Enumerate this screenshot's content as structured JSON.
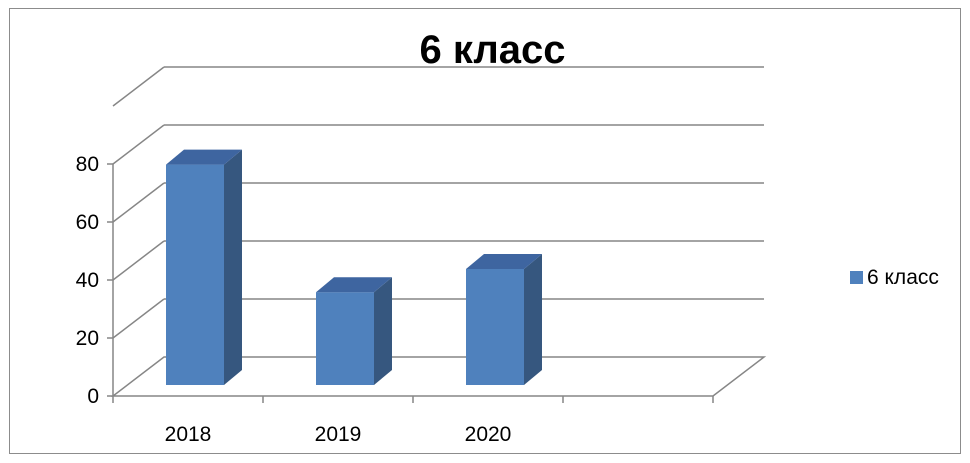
{
  "chart_data": {
    "type": "bar",
    "title": "6 класс",
    "categories": [
      "2018",
      "2019",
      "2020"
    ],
    "series": [
      {
        "name": "6 класс",
        "values": [
          76,
          32,
          40
        ],
        "color": "#4f81bd"
      }
    ],
    "ylim": [
      0,
      80
    ],
    "y_ticks": [
      "0",
      "20",
      "40",
      "60",
      "80"
    ],
    "grid": true,
    "legend_position": "right",
    "style": "3d-column"
  }
}
